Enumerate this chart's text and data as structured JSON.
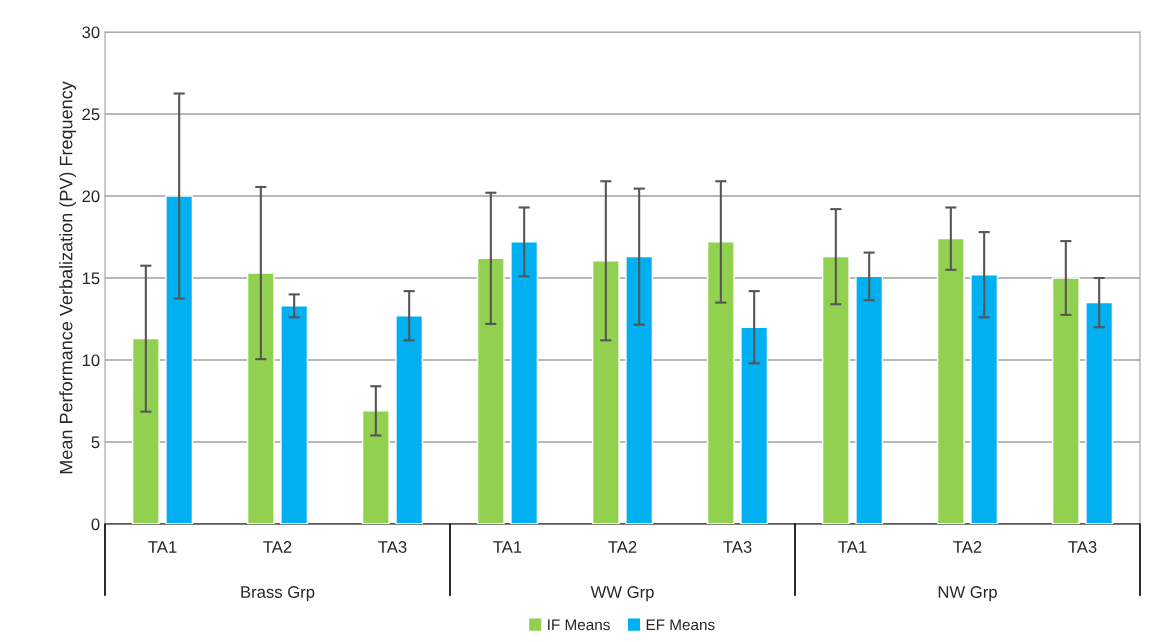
{
  "chart_data": {
    "type": "bar",
    "ylabel": "Mean Performance Verbalization (PV) Frequency",
    "categories": [
      "TA1",
      "TA2",
      "TA3",
      "TA1",
      "TA2",
      "TA3",
      "TA1",
      "TA2",
      "TA3"
    ],
    "annotations": [
      "Brass Grp",
      "WW Grp",
      "NW Grp"
    ],
    "series": [
      {
        "name": "IF Means",
        "color": "#92d050",
        "values": [
          11.3,
          15.3,
          6.9,
          16.2,
          16.05,
          17.2,
          16.3,
          17.4,
          15.0
        ],
        "errors": [
          4.45,
          5.25,
          1.5,
          4.0,
          4.85,
          3.7,
          2.9,
          1.9,
          2.25
        ]
      },
      {
        "name": "EF Means",
        "color": "#00b0f0",
        "values": [
          20.0,
          13.3,
          12.7,
          17.2,
          16.3,
          12.0,
          15.1,
          15.2,
          13.5
        ],
        "errors": [
          6.25,
          0.7,
          1.5,
          2.1,
          4.15,
          2.2,
          1.45,
          2.6,
          1.5
        ]
      }
    ],
    "ylim": [
      0,
      30
    ],
    "yticks": [
      0,
      5,
      10,
      15,
      20,
      25,
      30
    ],
    "grid": "y",
    "legend": "bottom"
  }
}
